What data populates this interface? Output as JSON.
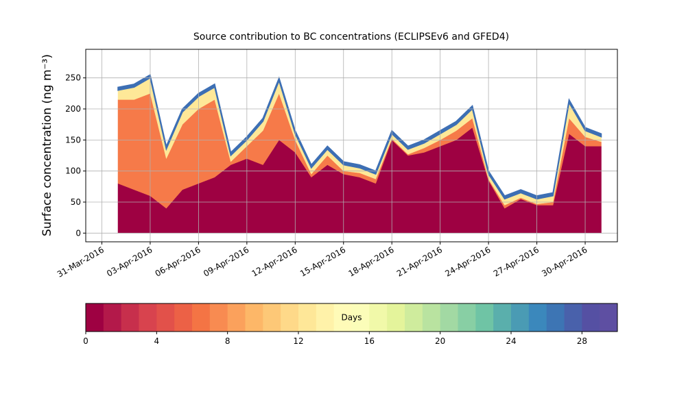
{
  "chart_data": {
    "type": "stacked_area",
    "title": "Source contribution to BC concentrations (ECLIPSEv6 and GFED4)",
    "y_label": "Surface concentration (ng m⁻³)",
    "x": [
      "2016-04-01",
      "2016-04-02",
      "2016-04-03",
      "2016-04-04",
      "2016-04-05",
      "2016-04-06",
      "2016-04-07",
      "2016-04-08",
      "2016-04-09",
      "2016-04-10",
      "2016-04-11",
      "2016-04-12",
      "2016-04-13",
      "2016-04-14",
      "2016-04-15",
      "2016-04-16",
      "2016-04-17",
      "2016-04-18",
      "2016-04-19",
      "2016-04-20",
      "2016-04-21",
      "2016-04-22",
      "2016-04-23",
      "2016-04-24",
      "2016-04-25",
      "2016-04-26",
      "2016-04-27",
      "2016-04-28",
      "2016-04-29",
      "2016-04-30",
      "2016-05-01"
    ],
    "series": [
      {
        "color": "#9e0142",
        "values": [
          80,
          70,
          60,
          40,
          70,
          80,
          90,
          110,
          120,
          110,
          150,
          130,
          90,
          110,
          95,
          90,
          80,
          150,
          125,
          130,
          140,
          150,
          170,
          85,
          40,
          55,
          45,
          45,
          160,
          140,
          140
        ]
      },
      {
        "color": "#f67a49",
        "values": [
          135,
          145,
          165,
          80,
          105,
          120,
          125,
          5,
          20,
          55,
          75,
          20,
          5,
          15,
          5,
          7,
          7,
          2,
          2,
          7,
          10,
          15,
          15,
          2,
          5,
          2,
          2,
          5,
          25,
          15,
          7
        ]
      },
      {
        "color": "#fee898",
        "values": [
          15,
          20,
          25,
          15,
          20,
          20,
          20,
          10,
          10,
          15,
          20,
          10,
          10,
          10,
          10,
          8,
          8,
          8,
          8,
          8,
          10,
          10,
          15,
          8,
          10,
          8,
          8,
          10,
          25,
          10,
          8
        ]
      },
      {
        "color": "#3d6fb4",
        "values": [
          5,
          5,
          5,
          5,
          5,
          5,
          5,
          5,
          5,
          5,
          5,
          5,
          5,
          5,
          5,
          5,
          5,
          5,
          5,
          5,
          5,
          5,
          5,
          5,
          5,
          5,
          5,
          5,
          5,
          5,
          5
        ]
      }
    ],
    "xlim": [
      "2016-03-30",
      "2016-05-02"
    ],
    "xticks": [
      {
        "value": "2016-03-31",
        "label": "31-Mar-2016"
      },
      {
        "value": "2016-04-03",
        "label": "03-Apr-2016"
      },
      {
        "value": "2016-04-06",
        "label": "06-Apr-2016"
      },
      {
        "value": "2016-04-09",
        "label": "09-Apr-2016"
      },
      {
        "value": "2016-04-12",
        "label": "12-Apr-2016"
      },
      {
        "value": "2016-04-15",
        "label": "15-Apr-2016"
      },
      {
        "value": "2016-04-18",
        "label": "18-Apr-2016"
      },
      {
        "value": "2016-04-21",
        "label": "21-Apr-2016"
      },
      {
        "value": "2016-04-24",
        "label": "24-Apr-2016"
      },
      {
        "value": "2016-04-27",
        "label": "27-Apr-2016"
      },
      {
        "value": "2016-04-30",
        "label": "30-Apr-2016"
      }
    ],
    "ylim": [
      -14,
      296
    ],
    "yticks": [
      0,
      50,
      100,
      150,
      200,
      250
    ],
    "grid": true,
    "colorbar": {
      "label": "Days",
      "lim": [
        0,
        30
      ],
      "ticks": [
        0,
        4,
        8,
        12,
        16,
        20,
        24,
        28
      ],
      "colors": [
        "#9e0142",
        "#b3194a",
        "#c72f4c",
        "#d8434e",
        "#e2514a",
        "#ec6146",
        "#f47444",
        "#f88b51",
        "#fba15c",
        "#fdb768",
        "#fdc877",
        "#fed989",
        "#fee798",
        "#fff2a9",
        "#fffbb8",
        "#fbfdb9",
        "#f1f9a9",
        "#e4f49b",
        "#cfec9d",
        "#b9e3a0",
        "#a2d9a3",
        "#88cfa4",
        "#6fc4a5",
        "#5aafac",
        "#4a9bb4",
        "#3b88bc",
        "#3d75b4",
        "#4961ab",
        "#5550a3",
        "#5e4fa2"
      ]
    }
  }
}
